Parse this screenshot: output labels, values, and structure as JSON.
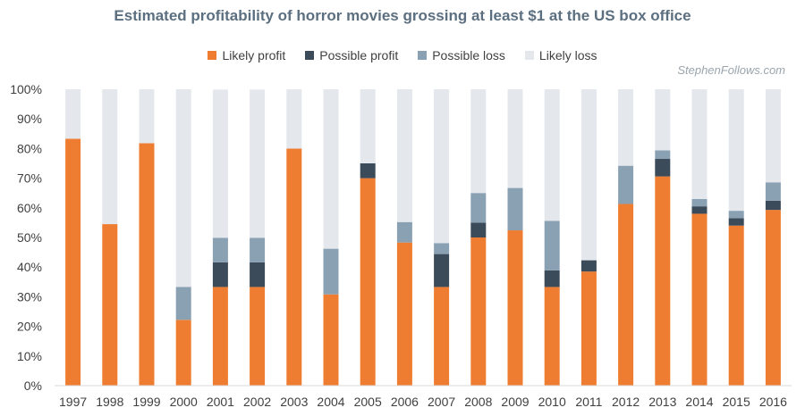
{
  "chart_data": {
    "type": "bar",
    "stacked": true,
    "title": "Estimated profitability of horror movies grossing at least $1 at the US box office",
    "credit": "StephenFollows.com",
    "categories": [
      "1997",
      "1998",
      "1999",
      "2000",
      "2001",
      "2002",
      "2003",
      "2004",
      "2005",
      "2006",
      "2007",
      "2008",
      "2009",
      "2010",
      "2011",
      "2012",
      "2013",
      "2014",
      "2015",
      "2016"
    ],
    "series": [
      {
        "name": "Likely profit",
        "color": "#ef7d31",
        "values": [
          83.3,
          54.5,
          81.8,
          22.2,
          33.3,
          33.3,
          80,
          30.8,
          70,
          48.3,
          33.3,
          50,
          52.4,
          33.3,
          38.5,
          61.3,
          70.6,
          58,
          54,
          59.3
        ]
      },
      {
        "name": "Possible profit",
        "color": "#3c4b5a",
        "values": [
          0,
          0,
          0,
          0,
          8.3,
          8.3,
          0,
          0,
          5,
          0,
          11.1,
          5,
          0,
          5.6,
          3.8,
          0,
          5.9,
          2.5,
          2.5,
          3.1
        ]
      },
      {
        "name": "Possible loss",
        "color": "#8aa1b4",
        "values": [
          0,
          0,
          0,
          11.1,
          8.3,
          8.3,
          0,
          15.4,
          0,
          6.9,
          3.7,
          10,
          14.3,
          16.7,
          0,
          12.9,
          2.9,
          2.5,
          2.5,
          6.2
        ]
      },
      {
        "name": "Likely loss",
        "color": "#e4e8ec",
        "values": [
          16.7,
          45.5,
          18.2,
          66.7,
          50,
          50,
          20,
          53.8,
          25,
          44.8,
          51.9,
          35,
          33.3,
          44.4,
          57.7,
          25.8,
          20.6,
          37,
          41,
          31.4
        ]
      }
    ],
    "ylim": [
      0,
      100
    ],
    "yticks": [
      0,
      10,
      20,
      30,
      40,
      50,
      60,
      70,
      80,
      90,
      100
    ],
    "ytick_suffix": "%",
    "grid": false,
    "legend_position": "top-center"
  }
}
